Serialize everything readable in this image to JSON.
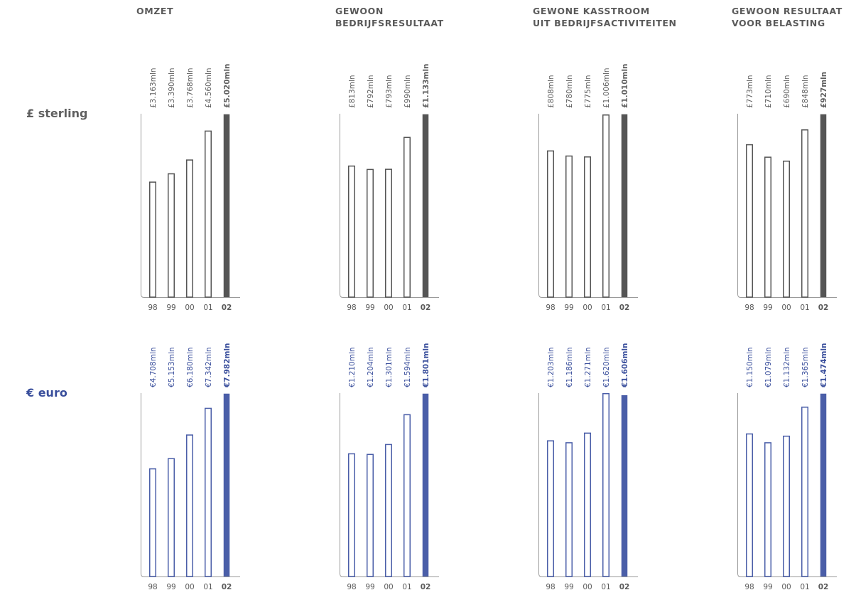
{
  "colors": {
    "sterling": "#555555",
    "euro": "#4a5ea8",
    "axis": "#9a9a9a",
    "label_sterling": "#5f5f5f",
    "label_euro": "#3a4f9c"
  },
  "columns": [
    {
      "title": "OMZET"
    },
    {
      "title": "GEWOON\nBEDRIJFSRESULTAAT"
    },
    {
      "title": "GEWONE KASSTROOM\nUIT BEDRIJFSACTIVITEITEN"
    },
    {
      "title": "GEWOON RESULTAAT\nVOOR BELASTING"
    }
  ],
  "rows": [
    {
      "label": "£ sterling",
      "color_key": "sterling"
    },
    {
      "label": "€ euro",
      "color_key": "euro"
    }
  ],
  "chart_data": [
    {
      "type": "bar",
      "title": "OMZET",
      "currency": "£ sterling",
      "categories": [
        "98",
        "99",
        "00",
        "01",
        "02"
      ],
      "values": [
        3163,
        3390,
        3768,
        4560,
        5020
      ],
      "labels": [
        "£3.163mln",
        "£3.390mln",
        "£3.768mln",
        "£4.560mln",
        "£5.020mln"
      ]
    },
    {
      "type": "bar",
      "title": "GEWOON BEDRIJFSRESULTAAT",
      "currency": "£ sterling",
      "categories": [
        "98",
        "99",
        "00",
        "01",
        "02"
      ],
      "values": [
        813,
        792,
        793,
        990,
        1133
      ],
      "labels": [
        "£813mln",
        "£792mln",
        "£793mln",
        "£990mln",
        "£1.133mln"
      ]
    },
    {
      "type": "bar",
      "title": "GEWONE KASSTROOM UIT BEDRIJFSACTIVITEITEN",
      "currency": "£ sterling",
      "categories": [
        "98",
        "99",
        "00",
        "01",
        "02"
      ],
      "values": [
        808,
        780,
        775,
        1006,
        1010
      ],
      "labels": [
        "£808mln",
        "£780mln",
        "£775mln",
        "£1.006mln",
        "£1.010mln"
      ]
    },
    {
      "type": "bar",
      "title": "GEWOON RESULTAAT VOOR BELASTING",
      "currency": "£ sterling",
      "categories": [
        "98",
        "99",
        "00",
        "01",
        "02"
      ],
      "values": [
        773,
        710,
        690,
        848,
        927
      ],
      "labels": [
        "£773mln",
        "£710mln",
        "£690mln",
        "£848mln",
        "£927mln"
      ]
    },
    {
      "type": "bar",
      "title": "OMZET",
      "currency": "€ euro",
      "categories": [
        "98",
        "99",
        "00",
        "01",
        "02"
      ],
      "values": [
        4708,
        5153,
        6180,
        7342,
        7982
      ],
      "labels": [
        "€4.708mln",
        "€5.153mln",
        "€6.180mln",
        "€7.342mln",
        "€7.982mln"
      ]
    },
    {
      "type": "bar",
      "title": "GEWOON BEDRIJFSRESULTAAT",
      "currency": "€ euro",
      "categories": [
        "98",
        "99",
        "00",
        "01",
        "02"
      ],
      "values": [
        1210,
        1204,
        1301,
        1594,
        1801
      ],
      "labels": [
        "€1.210mln",
        "€1.204mln",
        "€1.301mln",
        "€1.594mln",
        "€1.801mln"
      ]
    },
    {
      "type": "bar",
      "title": "GEWONE KASSTROOM UIT BEDRIJFSACTIVITEITEN",
      "currency": "€ euro",
      "categories": [
        "98",
        "99",
        "00",
        "01",
        "02"
      ],
      "values": [
        1203,
        1186,
        1271,
        1620,
        1606
      ],
      "labels": [
        "€1.203mln",
        "€1.186mln",
        "€1.271mln",
        "€1.620mln",
        "€1.606mln"
      ]
    },
    {
      "type": "bar",
      "title": "GEWOON RESULTAAT VOOR BELASTING",
      "currency": "€ euro",
      "categories": [
        "98",
        "99",
        "00",
        "01",
        "02"
      ],
      "values": [
        1150,
        1079,
        1132,
        1365,
        1474
      ],
      "labels": [
        "€1.150mln",
        "€1.079mln",
        "€1.132mln",
        "€1.365mln",
        "€1.474mln"
      ]
    }
  ]
}
